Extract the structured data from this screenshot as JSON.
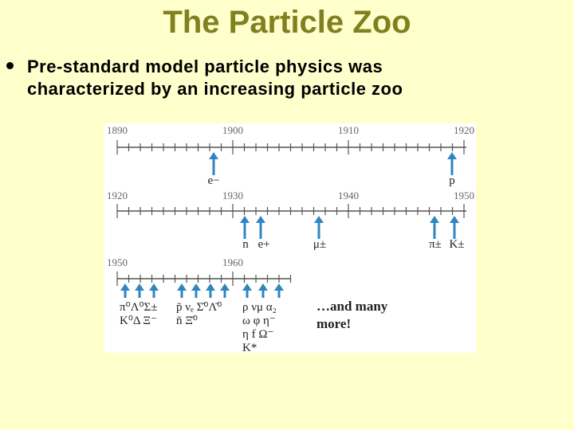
{
  "title": "The Particle Zoo",
  "bullet": [
    "Pre-standard model particle physics was",
    "characterized by an increasing particle zoo"
  ],
  "timelines": [
    {
      "years": [
        1890,
        1900,
        1910,
        1920
      ],
      "particles": [
        "e−",
        "p"
      ]
    },
    {
      "years": [
        1920,
        1930,
        1940,
        1950
      ],
      "particles": [
        "n",
        "e+",
        "μ±",
        "π±",
        "K±"
      ]
    },
    {
      "years": [
        1950,
        1960
      ],
      "groups": [
        [
          "π⁰Λ⁰Σ±",
          "K⁰Δ  Ξ⁻"
        ],
        [
          "p̄  νₑ Σ̄⁰Λ̄⁰",
          "n̄        Ξ̄⁰"
        ],
        [
          "ρ   νμ  α₂",
          "ω   φ   η⁻",
          "η   f   Ω⁻",
          "K*"
        ]
      ]
    }
  ],
  "note": [
    "…and many",
    "more!"
  ]
}
